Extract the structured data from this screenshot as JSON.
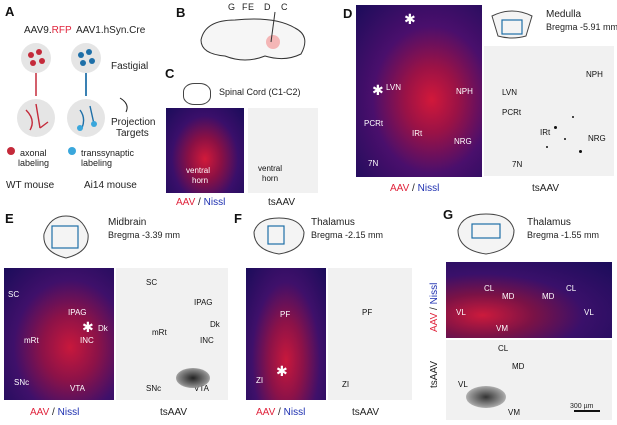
{
  "panel_letters": [
    "A",
    "B",
    "C",
    "D",
    "E",
    "F",
    "G"
  ],
  "A": {
    "aav9_prefix": "AAV9.",
    "aav9_rfp": "RFP",
    "aav1": "AAV1.hSyn.Cre",
    "fastigial": "Fastigial",
    "projection": "Projection",
    "targets": "Targets",
    "axonal1": "axonal",
    "axonal2": "labeling",
    "trans1": "transsynaptic",
    "trans2": "labeling",
    "wt": "WT mouse",
    "ai14": "Ai14 mouse"
  },
  "B": {
    "lines": [
      "G",
      "F",
      "E",
      "D",
      "C"
    ]
  },
  "C": {
    "title": "Spinal Cord (C1-C2)",
    "ventral1": "ventral",
    "horn1": "horn",
    "ventral2": "ventral",
    "horn2": "horn",
    "aav": "AAV",
    "slash": " / ",
    "nissl": "Nissl",
    "tsaav": "tsAAV"
  },
  "D": {
    "title": "Medulla",
    "bregma": "Bregma -5.91 mm",
    "left_labels": [
      "LVN",
      "NPH",
      "PCRt",
      "IRt",
      "NRG",
      "7N"
    ],
    "right_labels": [
      "LVN",
      "NPH",
      "PCRt",
      "IRt",
      "NRG",
      "7N"
    ],
    "aav": "AAV",
    "slash": " / ",
    "nissl": "Nissl",
    "tsaav": "tsAAV"
  },
  "E": {
    "title": "Midbrain",
    "bregma": "Bregma -3.39 mm",
    "left_labels": [
      "SC",
      "IPAG",
      "Dk",
      "mRt",
      "INC",
      "SNc",
      "VTA"
    ],
    "right_labels": [
      "SC",
      "IPAG",
      "Dk",
      "mRt",
      "INC",
      "SNc",
      "VTA"
    ],
    "aav": "AAV",
    "slash": " / ",
    "nissl": "Nissl",
    "tsaav": "tsAAV"
  },
  "F": {
    "title": "Thalamus",
    "bregma": "Bregma -2.15 mm",
    "left_labels": [
      "PF",
      "ZI"
    ],
    "right_labels": [
      "PF",
      "ZI"
    ],
    "aav": "AAV",
    "slash": " / ",
    "nissl": "Nissl",
    "tsaav": "tsAAV"
  },
  "G": {
    "title": "Thalamus",
    "bregma": "Bregma -1.55 mm",
    "top_labels": [
      "CL",
      "MD",
      "MD",
      "CL",
      "VL",
      "VL",
      "VM"
    ],
    "bottom_labels": [
      "CL",
      "MD",
      "VL",
      "VM"
    ],
    "side_aav": "AAV",
    "side_slash": " / ",
    "side_nissl": "Nissl",
    "side_tsaav": "tsAAV",
    "scalebar": "300 µm"
  },
  "colors": {
    "aav_red": "#e0243c",
    "nissl_blue": "#1d2fb0"
  }
}
